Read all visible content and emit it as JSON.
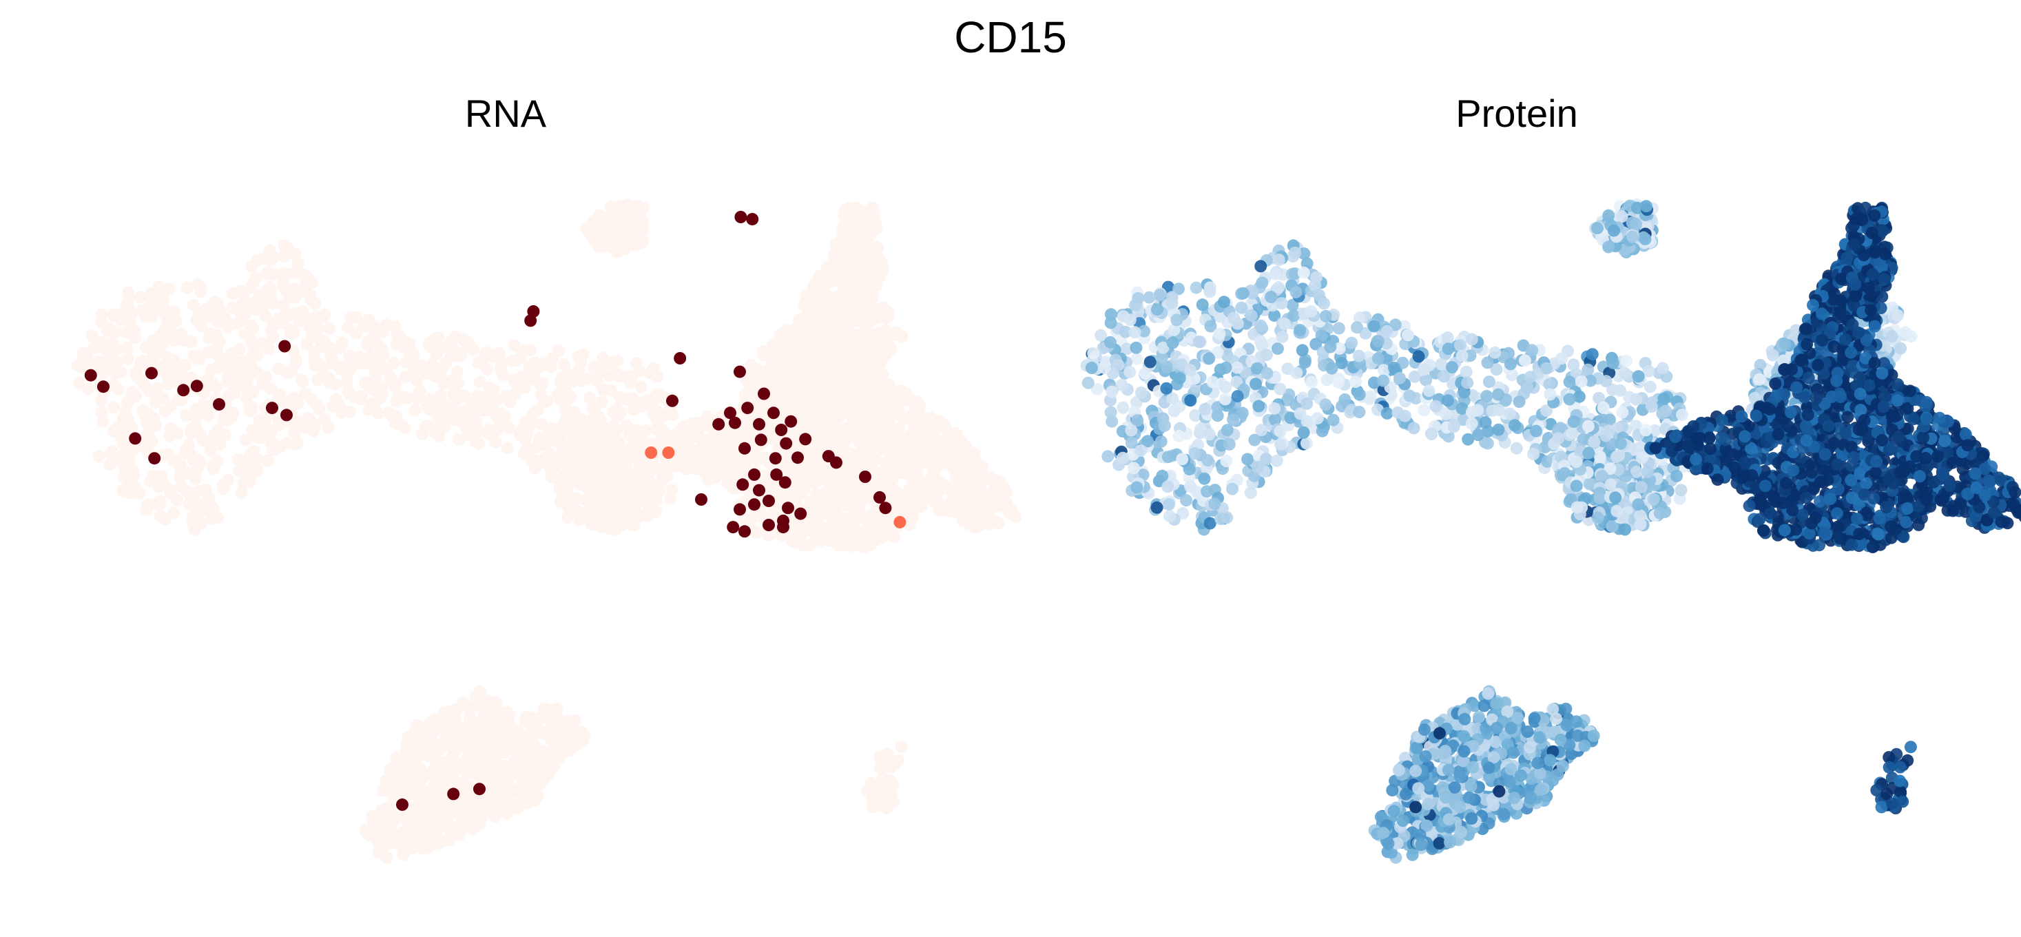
{
  "figure": {
    "title": "CD15"
  },
  "chart_data": [
    {
      "type": "scatter",
      "title": "RNA",
      "xlabel": "",
      "ylabel": "",
      "axes_visible": false,
      "grid": false,
      "legend": "none",
      "colormap": "Reds",
      "colormap_stops": [
        "#fff5f0",
        "#fcbba1",
        "#fb6a4a",
        "#cb181d",
        "#67000d"
      ],
      "background_points_color": "#fff5f0",
      "high_expression_points": [
        {
          "x": 0.037,
          "y": 0.743
        },
        {
          "x": 0.05,
          "y": 0.727
        },
        {
          "x": 0.1,
          "y": 0.746
        },
        {
          "x": 0.133,
          "y": 0.722
        },
        {
          "x": 0.147,
          "y": 0.728
        },
        {
          "x": 0.17,
          "y": 0.702
        },
        {
          "x": 0.083,
          "y": 0.654
        },
        {
          "x": 0.103,
          "y": 0.626
        },
        {
          "x": 0.238,
          "y": 0.784
        },
        {
          "x": 0.225,
          "y": 0.697
        },
        {
          "x": 0.24,
          "y": 0.687
        },
        {
          "x": 0.496,
          "y": 0.833
        },
        {
          "x": 0.493,
          "y": 0.82
        },
        {
          "x": 0.711,
          "y": 0.966
        },
        {
          "x": 0.723,
          "y": 0.963
        },
        {
          "x": 0.648,
          "y": 0.767
        },
        {
          "x": 0.64,
          "y": 0.707
        },
        {
          "x": 0.71,
          "y": 0.748
        },
        {
          "x": 0.735,
          "y": 0.717
        },
        {
          "x": 0.7,
          "y": 0.69
        },
        {
          "x": 0.718,
          "y": 0.697
        },
        {
          "x": 0.745,
          "y": 0.69
        },
        {
          "x": 0.705,
          "y": 0.676
        },
        {
          "x": 0.688,
          "y": 0.674
        },
        {
          "x": 0.73,
          "y": 0.674
        },
        {
          "x": 0.753,
          "y": 0.666
        },
        {
          "x": 0.763,
          "y": 0.678
        },
        {
          "x": 0.732,
          "y": 0.652
        },
        {
          "x": 0.758,
          "y": 0.647
        },
        {
          "x": 0.778,
          "y": 0.653
        },
        {
          "x": 0.715,
          "y": 0.64
        },
        {
          "x": 0.747,
          "y": 0.626
        },
        {
          "x": 0.77,
          "y": 0.627
        },
        {
          "x": 0.748,
          "y": 0.603
        },
        {
          "x": 0.725,
          "y": 0.603
        },
        {
          "x": 0.757,
          "y": 0.592
        },
        {
          "x": 0.713,
          "y": 0.589
        },
        {
          "x": 0.73,
          "y": 0.581
        },
        {
          "x": 0.74,
          "y": 0.566
        },
        {
          "x": 0.725,
          "y": 0.561
        },
        {
          "x": 0.71,
          "y": 0.554
        },
        {
          "x": 0.76,
          "y": 0.556
        },
        {
          "x": 0.773,
          "y": 0.548
        },
        {
          "x": 0.755,
          "y": 0.538
        },
        {
          "x": 0.74,
          "y": 0.532
        },
        {
          "x": 0.755,
          "y": 0.529
        },
        {
          "x": 0.703,
          "y": 0.529
        },
        {
          "x": 0.715,
          "y": 0.523
        },
        {
          "x": 0.67,
          "y": 0.568
        },
        {
          "x": 0.802,
          "y": 0.629
        },
        {
          "x": 0.81,
          "y": 0.62
        },
        {
          "x": 0.84,
          "y": 0.6
        },
        {
          "x": 0.855,
          "y": 0.571
        },
        {
          "x": 0.861,
          "y": 0.556
        },
        {
          "x": 0.36,
          "y": 0.138
        },
        {
          "x": 0.413,
          "y": 0.153
        },
        {
          "x": 0.44,
          "y": 0.16
        }
      ],
      "mid_expression_points": [
        {
          "x": 0.618,
          "y": 0.634
        },
        {
          "x": 0.636,
          "y": 0.634
        },
        {
          "x": 0.876,
          "y": 0.536
        }
      ]
    },
    {
      "type": "scatter",
      "title": "Protein",
      "xlabel": "",
      "ylabel": "",
      "axes_visible": false,
      "grid": false,
      "legend": "none",
      "colormap": "Blues",
      "colormap_stops": [
        "#f7fbff",
        "#c6dbef",
        "#6baed6",
        "#2171b5",
        "#08306b"
      ],
      "expression_levels": {
        "upper_left_cluster": 0.3,
        "right_large_cluster": 0.95,
        "lower_cluster": 0.45
      }
    }
  ]
}
